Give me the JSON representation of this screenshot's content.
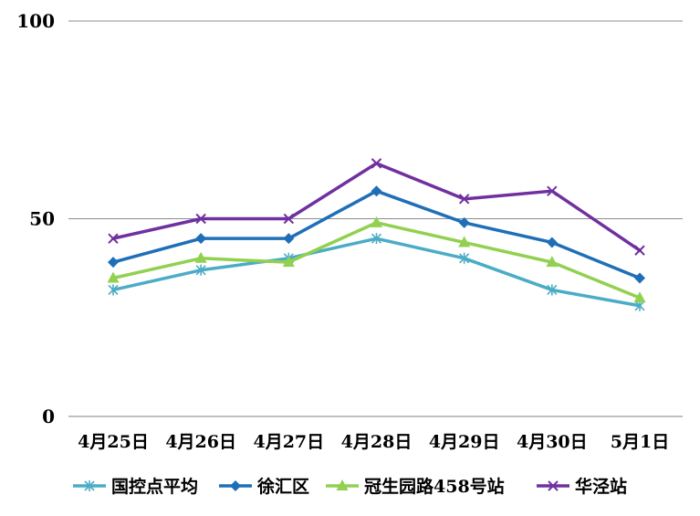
{
  "chart_data": {
    "type": "line",
    "title": "",
    "xlabel": "",
    "ylabel": "",
    "ylim": [
      0,
      100
    ],
    "yticks": [
      0,
      50,
      100
    ],
    "grid": true,
    "legend": "bottom",
    "categories": [
      "4月25日",
      "4月26日",
      "4月27日",
      "4月28日",
      "4月29日",
      "4月30日",
      "5月1日"
    ],
    "series": [
      {
        "name": "国控点平均",
        "values": [
          32,
          37,
          40,
          45,
          40,
          32,
          28
        ],
        "color": "#4bacc6",
        "marker": "asterisk"
      },
      {
        "name": "徐汇区",
        "values": [
          39,
          45,
          45,
          57,
          49,
          44,
          35
        ],
        "color": "#1f6fb8",
        "marker": "diamond"
      },
      {
        "name": "冠生园路458号站",
        "values": [
          35,
          40,
          39,
          49,
          44,
          39,
          30
        ],
        "color": "#92d050",
        "marker": "triangle"
      },
      {
        "name": "华泾站",
        "values": [
          45,
          50,
          50,
          64,
          55,
          57,
          42
        ],
        "color": "#7030a0",
        "marker": "x"
      }
    ]
  }
}
